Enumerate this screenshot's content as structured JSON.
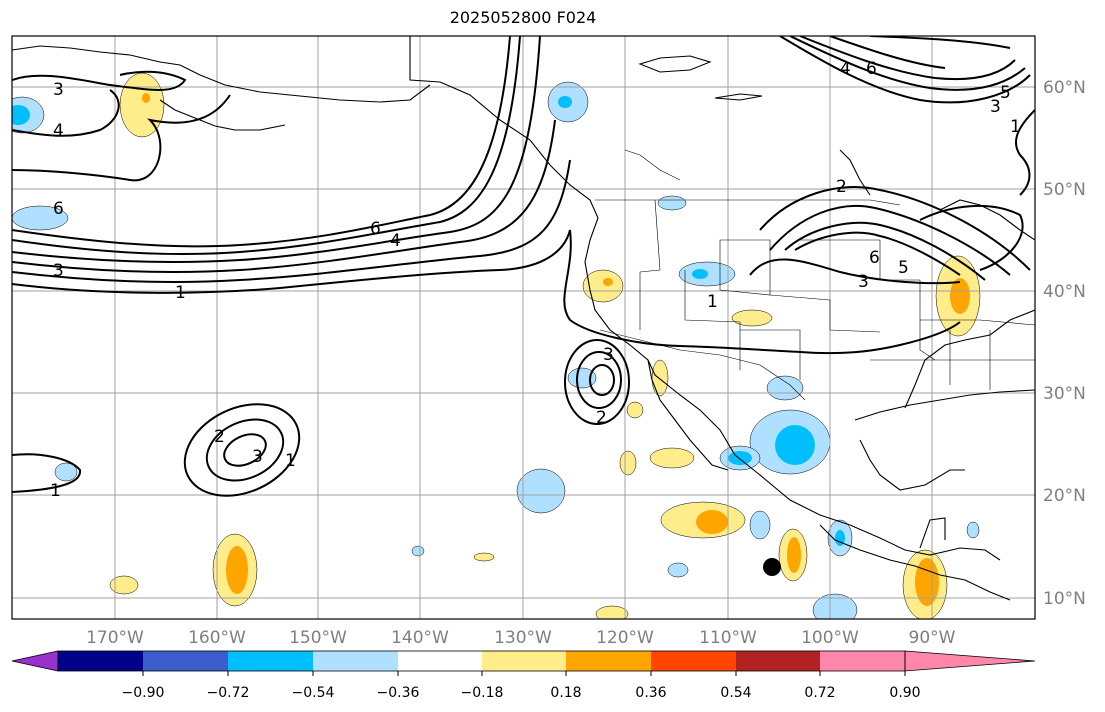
{
  "title": "2025052800 F024",
  "map": {
    "lon_labels": [
      "170°W",
      "160°W",
      "150°W",
      "140°W",
      "130°W",
      "120°W",
      "110°W",
      "100°W",
      "90°W"
    ],
    "lat_labels": [
      "60°N",
      "50°N",
      "40°N",
      "30°N",
      "20°N",
      "10°N"
    ],
    "contour_labels": [
      "3",
      "4",
      "6",
      "6",
      "4",
      "3",
      "1",
      "1",
      "2",
      "3",
      "1",
      "3",
      "2",
      "1",
      "2",
      "6",
      "5",
      "3",
      "4",
      "6",
      "5",
      "3",
      "1"
    ]
  },
  "colorbar": {
    "tick_labels": [
      "−0.90",
      "−0.72",
      "−0.54",
      "−0.36",
      "−0.18",
      "0.18",
      "0.36",
      "0.54",
      "0.72",
      "0.90"
    ],
    "colors": [
      "#9932cc",
      "#00008b",
      "#3a5fcd",
      "#00bfff",
      "#b0e0ff",
      "#ffffff",
      "#ffec8b",
      "#ffa500",
      "#ff4500",
      "#b22222",
      "#ff88aa"
    ]
  }
}
